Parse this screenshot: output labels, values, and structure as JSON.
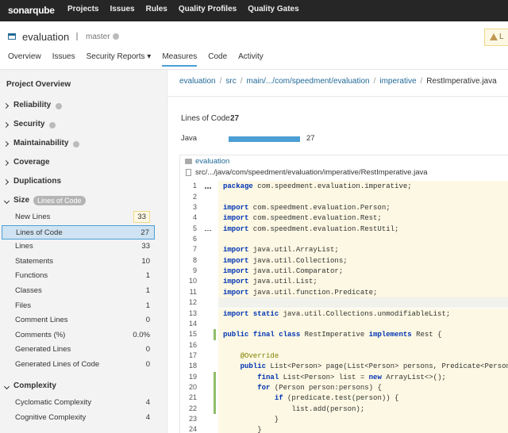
{
  "topbar": {
    "logo": "sonarqube",
    "nav": [
      "Projects",
      "Issues",
      "Rules",
      "Quality Profiles",
      "Quality Gates"
    ]
  },
  "project": {
    "name": "evaluation",
    "branch": "master",
    "alert": "L",
    "tabs": [
      "Overview",
      "Issues",
      "Security Reports ▾",
      "Measures",
      "Code",
      "Activity"
    ],
    "active_tab": 3
  },
  "sidebar": {
    "title": "Project Overview",
    "sections": [
      {
        "name": "Reliability",
        "help": true
      },
      {
        "name": "Security",
        "help": true
      },
      {
        "name": "Maintainability",
        "help": true
      },
      {
        "name": "Coverage"
      },
      {
        "name": "Duplications"
      },
      {
        "name": "Size",
        "badge": "Lines of Code",
        "items": [
          {
            "name": "New Lines",
            "value": "33",
            "new_code": true
          },
          {
            "name": "Lines of Code",
            "value": "27",
            "selected": true
          },
          {
            "name": "Lines",
            "value": "33"
          },
          {
            "name": "Statements",
            "value": "10"
          },
          {
            "name": "Functions",
            "value": "1"
          },
          {
            "name": "Classes",
            "value": "1"
          },
          {
            "name": "Files",
            "value": "1"
          },
          {
            "name": "Comment Lines",
            "value": "0"
          },
          {
            "name": "Comments (%)",
            "value": "0.0%"
          },
          {
            "name": "Generated Lines",
            "value": "0"
          },
          {
            "name": "Generated Lines of Code",
            "value": "0"
          }
        ]
      },
      {
        "name": "Complexity",
        "items": [
          {
            "name": "Cyclomatic Complexity",
            "value": "4"
          },
          {
            "name": "Cognitive Complexity",
            "value": "4"
          }
        ]
      }
    ]
  },
  "breadcrumb": {
    "separator": "/",
    "items": [
      "evaluation",
      "src",
      "main/.../com/speedment/evaluation",
      "imperative",
      "RestImperative.java"
    ]
  },
  "summary": {
    "label": "Lines of Code",
    "value": 27,
    "languages": [
      {
        "name": "Java",
        "value": 27
      }
    ]
  },
  "code": {
    "project": "evaluation",
    "path": "src/.../java/com/speedment/evaluation/imperative/RestImperative.java",
    "lines": [
      {
        "number": 1,
        "dots": true,
        "tokens": [
          [
            "k",
            "package"
          ],
          [
            "p",
            " com.speedment.evaluation.imperative;"
          ]
        ]
      },
      {
        "number": 2,
        "tokens": []
      },
      {
        "number": 3,
        "tokens": [
          [
            "k",
            "import"
          ],
          [
            "p",
            " com.speedment.evaluation.Person;"
          ]
        ]
      },
      {
        "number": 4,
        "tokens": [
          [
            "k",
            "import"
          ],
          [
            "p",
            " com.speedment.evaluation.Rest;"
          ]
        ]
      },
      {
        "number": 5,
        "dots": true,
        "tokens": [
          [
            "k",
            "import"
          ],
          [
            "p",
            " com.speedment.evaluation.RestUtil;"
          ]
        ]
      },
      {
        "number": 6,
        "tokens": []
      },
      {
        "number": 7,
        "tokens": [
          [
            "k",
            "import"
          ],
          [
            "p",
            " java.util.ArrayList;"
          ]
        ]
      },
      {
        "number": 8,
        "tokens": [
          [
            "k",
            "import"
          ],
          [
            "p",
            " java.util.Collections;"
          ]
        ]
      },
      {
        "number": 9,
        "tokens": [
          [
            "k",
            "import"
          ],
          [
            "p",
            " java.util.Comparator;"
          ]
        ]
      },
      {
        "number": 10,
        "tokens": [
          [
            "k",
            "import"
          ],
          [
            "p",
            " java.util.List;"
          ]
        ]
      },
      {
        "number": 11,
        "tokens": [
          [
            "k",
            "import"
          ],
          [
            "p",
            " java.util.function.Predicate;"
          ]
        ]
      },
      {
        "number": 12,
        "hover": true,
        "tokens": []
      },
      {
        "number": 13,
        "tokens": [
          [
            "k",
            "import"
          ],
          [
            "p",
            " "
          ],
          [
            "k",
            "static"
          ],
          [
            "p",
            " java.util.Collections.unmodifiableList;"
          ]
        ]
      },
      {
        "number": 14,
        "tokens": []
      },
      {
        "number": 15,
        "marker": true,
        "tokens": [
          [
            "k",
            "public"
          ],
          [
            "p",
            " "
          ],
          [
            "k",
            "final"
          ],
          [
            "p",
            " "
          ],
          [
            "k",
            "class"
          ],
          [
            "p",
            " RestImperative "
          ],
          [
            "k",
            "implements"
          ],
          [
            "p",
            " Rest {"
          ]
        ]
      },
      {
        "number": 16,
        "tokens": []
      },
      {
        "number": 17,
        "tokens": [
          [
            "p",
            "    "
          ],
          [
            "a",
            "@Override"
          ]
        ]
      },
      {
        "number": 18,
        "tokens": [
          [
            "p",
            "    "
          ],
          [
            "k",
            "public"
          ],
          [
            "p",
            " List<Person> page(List<Person> persons, Predicate<Person"
          ]
        ]
      },
      {
        "number": 19,
        "marker": true,
        "tokens": [
          [
            "p",
            "        "
          ],
          [
            "k",
            "final"
          ],
          [
            "p",
            " List<Person> list = "
          ],
          [
            "k",
            "new"
          ],
          [
            "p",
            " ArrayList<>();"
          ]
        ]
      },
      {
        "number": 20,
        "marker": true,
        "tokens": [
          [
            "p",
            "        "
          ],
          [
            "k",
            "for"
          ],
          [
            "p",
            " (Person person:persons) {"
          ]
        ]
      },
      {
        "number": 21,
        "marker": true,
        "tokens": [
          [
            "p",
            "            "
          ],
          [
            "k",
            "if"
          ],
          [
            "p",
            " (predicate.test(person)) {"
          ]
        ]
      },
      {
        "number": 22,
        "marker": true,
        "tokens": [
          [
            "p",
            "                list.add(person);"
          ]
        ]
      },
      {
        "number": 23,
        "tokens": [
          [
            "p",
            "            }"
          ]
        ]
      },
      {
        "number": 24,
        "tokens": [
          [
            "p",
            "        }"
          ]
        ]
      }
    ]
  }
}
